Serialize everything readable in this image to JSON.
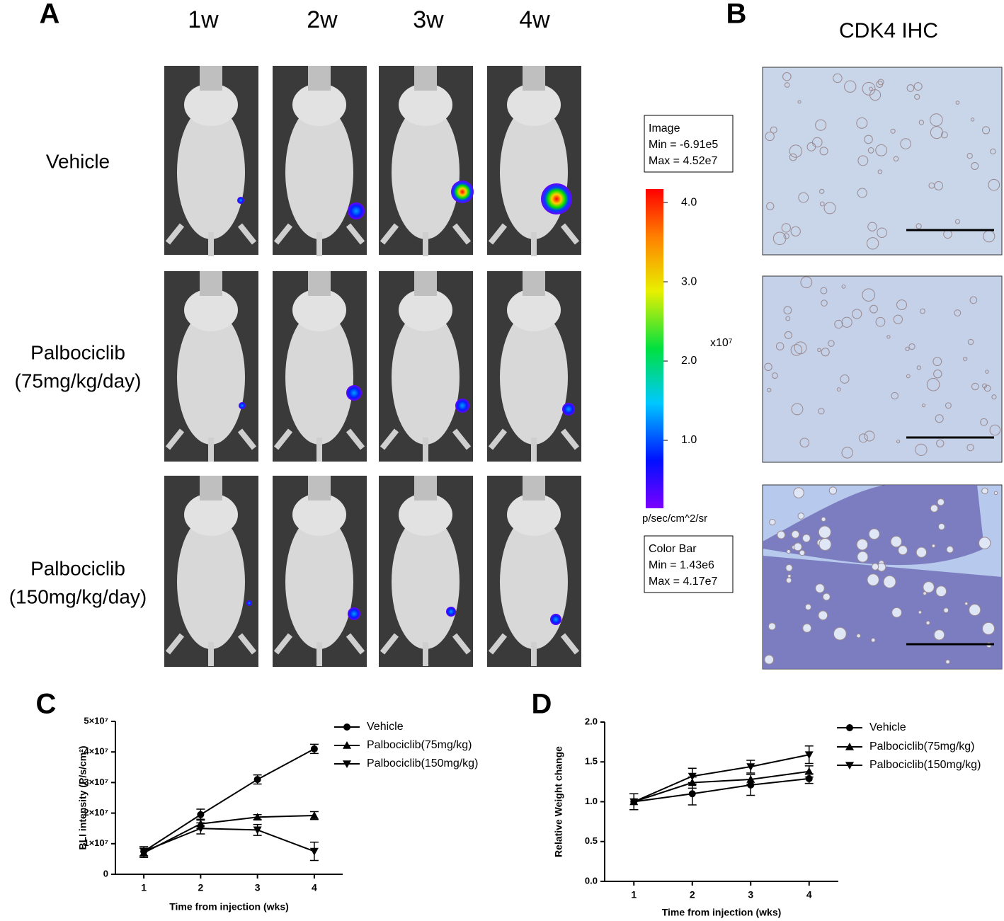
{
  "panel_labels": [
    "A",
    "B",
    "C",
    "D"
  ],
  "panel_a": {
    "columns": [
      "1w",
      "2w",
      "3w",
      "4w"
    ],
    "rows": [
      {
        "lines": [
          "Vehicle"
        ]
      },
      {
        "lines": [
          "Palbociclib",
          "(75mg/kg/day)"
        ]
      },
      {
        "lines": [
          "Palbociclib",
          "(150mg/kg/day)"
        ]
      }
    ]
  },
  "colorbar": {
    "image_box": [
      "Image",
      "Min = -6.91e5",
      "Max = 4.52e7"
    ],
    "lim": [
      0.143,
      4.17
    ],
    "ticks": [
      {
        "value": 4,
        "label": "4.0"
      },
      {
        "value": 3,
        "label": "3.0"
      },
      {
        "value": 2,
        "label": "2.0"
      },
      {
        "value": 1,
        "label": "1.0"
      }
    ],
    "multiplier": "x10⁷",
    "unit": "p/sec/cm^2/sr",
    "colorbar_box": [
      "Color Bar",
      "Min = 1.43e6",
      "Max = 4.17e7"
    ]
  },
  "panel_b": {
    "title": "CDK4 IHC"
  },
  "chart_data": [
    {
      "type": "line",
      "ylabel": "BLI intensity (P/s/cm²)",
      "xlabel": "Time from injection (wks)",
      "x": [
        1,
        2,
        3,
        4
      ],
      "xlim": [
        0.5,
        4.5
      ],
      "xticks": [
        1,
        2,
        3,
        4
      ],
      "ylim": [
        0,
        50000000
      ],
      "yticks": [
        0,
        {
          "value": 10000000,
          "label": "1×10⁷"
        },
        {
          "value": 20000000,
          "label": "2×10⁷"
        },
        {
          "value": 30000000,
          "label": "3×10⁷"
        },
        {
          "value": 40000000,
          "label": "4×10⁷"
        },
        {
          "value": 50000000,
          "label": "5×10⁷"
        }
      ],
      "series": [
        {
          "name": "Vehicle",
          "color": "#000000",
          "marker": "circle",
          "values": [
            7500000,
            19500000,
            31000000,
            41000000
          ],
          "errors": [
            1500000,
            1800000,
            1500000,
            1500000
          ]
        },
        {
          "name": "Palbociclib(75mg/kg)",
          "color": "#000000",
          "marker": "triangle-up",
          "values": [
            7000000,
            16500000,
            18700000,
            19200000
          ],
          "errors": [
            1500000,
            1500000,
            800000,
            1300000
          ]
        },
        {
          "name": "Palbociclib(150mg/kg)",
          "color": "#000000",
          "marker": "triangle-down",
          "values": [
            7500000,
            15000000,
            14500000,
            7500000
          ],
          "errors": [
            1500000,
            1800000,
            1800000,
            3000000
          ]
        }
      ]
    },
    {
      "type": "line",
      "ylabel": "Relative Weight change",
      "xlabel": "Time from injection (wks)",
      "x": [
        1,
        2,
        3,
        4
      ],
      "xlim": [
        0.5,
        4.5
      ],
      "xticks": [
        1,
        2,
        3,
        4
      ],
      "ylim": [
        0,
        2
      ],
      "yticks": [
        {
          "value": 0,
          "label": "0.0"
        },
        0.5,
        {
          "value": 1,
          "label": "1.0"
        },
        1.5,
        {
          "value": 2,
          "label": "2.0"
        }
      ],
      "series": [
        {
          "name": "Vehicle",
          "color": "#000000",
          "marker": "circle",
          "values": [
            1.0,
            1.1,
            1.21,
            1.29
          ],
          "errors": [
            0.1,
            0.14,
            0.13,
            0.06
          ]
        },
        {
          "name": "Palbociclib(75mg/kg)",
          "color": "#000000",
          "marker": "triangle-up",
          "values": [
            1.0,
            1.24,
            1.28,
            1.38
          ],
          "errors": [
            0.1,
            0.07,
            0.06,
            0.07
          ]
        },
        {
          "name": "Palbociclib(150mg/kg)",
          "color": "#000000",
          "marker": "triangle-down",
          "values": [
            1.0,
            1.32,
            1.44,
            1.59
          ],
          "errors": [
            0.1,
            0.1,
            0.08,
            0.11
          ]
        }
      ]
    }
  ]
}
